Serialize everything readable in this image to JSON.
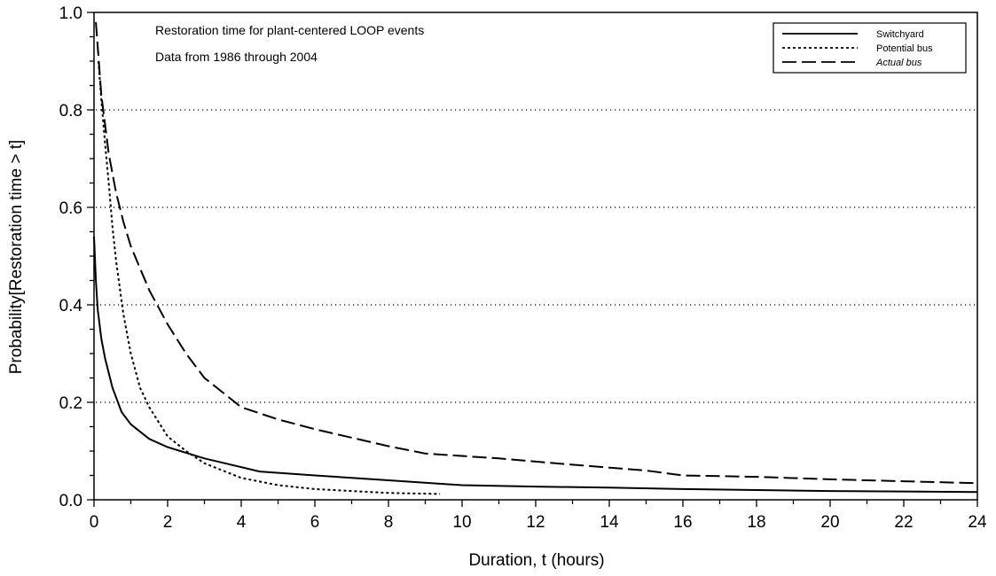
{
  "chart_data": {
    "type": "line",
    "title": "",
    "annotations": [
      "Restoration time for plant-centered LOOP events",
      "Data from 1986 through 2004"
    ],
    "xlabel": "Duration, t (hours)",
    "ylabel": "Probability[Restoration time > t]",
    "xlim": [
      0,
      24
    ],
    "ylim": [
      0,
      1.0
    ],
    "x_ticks": [
      0,
      2,
      4,
      6,
      8,
      10,
      12,
      14,
      16,
      18,
      20,
      22,
      24
    ],
    "y_ticks": [
      0.0,
      0.2,
      0.4,
      0.6,
      0.8,
      1.0
    ],
    "x_tick_labels": [
      "0",
      "2",
      "4",
      "6",
      "8",
      "10",
      "12",
      "14",
      "16",
      "18",
      "20",
      "22",
      "24"
    ],
    "y_tick_labels": [
      "0.0",
      "0.2",
      "0.4",
      "0.6",
      "0.8",
      "1.0"
    ],
    "grid": "horizontal dotted",
    "legend_position": "top-right",
    "series": [
      {
        "name": "Switchyard",
        "style": "solid",
        "x": [
          0.0,
          0.05,
          0.1,
          0.2,
          0.3,
          0.5,
          0.75,
          1.0,
          1.5,
          2.0,
          3.0,
          4.5,
          6.0,
          8.0,
          10.0,
          12.0,
          14.0,
          16.0,
          18.0,
          20.0,
          22.0,
          24.0
        ],
        "y": [
          0.54,
          0.45,
          0.39,
          0.33,
          0.29,
          0.23,
          0.18,
          0.155,
          0.125,
          0.108,
          0.085,
          0.058,
          0.05,
          0.04,
          0.03,
          0.027,
          0.025,
          0.022,
          0.02,
          0.018,
          0.017,
          0.016
        ]
      },
      {
        "name": "Potential bus",
        "style": "dotted",
        "x": [
          0.12,
          0.2,
          0.3,
          0.4,
          0.5,
          0.6,
          0.8,
          1.0,
          1.25,
          1.5,
          2.0,
          2.5,
          3.0,
          4.0,
          5.0,
          6.0,
          8.0,
          9.4
        ],
        "y": [
          0.9,
          0.82,
          0.73,
          0.65,
          0.56,
          0.49,
          0.38,
          0.3,
          0.23,
          0.19,
          0.13,
          0.1,
          0.075,
          0.045,
          0.03,
          0.022,
          0.014,
          0.012
        ]
      },
      {
        "name": "Actual bus",
        "style": "dashed",
        "x": [
          0.05,
          0.2,
          0.4,
          0.6,
          0.8,
          1.0,
          1.5,
          2.0,
          2.5,
          3.0,
          3.5,
          4.0,
          5.0,
          6.0,
          8.0,
          9.0,
          11.0,
          13.0,
          15.0,
          16.0,
          18.0,
          20.0,
          22.0,
          24.0
        ],
        "y": [
          0.98,
          0.83,
          0.71,
          0.63,
          0.57,
          0.52,
          0.43,
          0.36,
          0.3,
          0.25,
          0.22,
          0.19,
          0.165,
          0.145,
          0.11,
          0.095,
          0.085,
          0.072,
          0.06,
          0.05,
          0.047,
          0.042,
          0.038,
          0.034
        ]
      }
    ]
  }
}
